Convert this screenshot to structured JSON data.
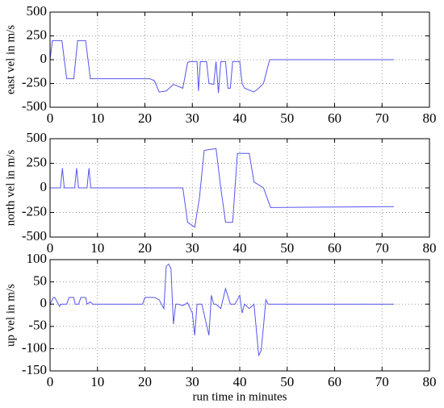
{
  "chart_data": [
    {
      "type": "line",
      "ylabel": "east vel in m/s",
      "color": "#5555ee",
      "x": [
        0,
        0.5,
        2.5,
        3.5,
        5,
        5.8,
        7.5,
        8.5,
        21,
        22,
        23,
        24.5,
        26,
        28,
        29,
        29.5,
        31,
        31.3,
        31.7,
        32,
        33,
        33.5,
        34.5,
        35,
        35.5,
        36,
        37,
        37.5,
        38,
        38.5,
        39,
        40,
        40.5,
        41,
        43,
        44,
        45,
        46.3,
        72.5
      ],
      "values": [
        0,
        200,
        200,
        -200,
        -200,
        200,
        200,
        -200,
        -200,
        -220,
        -340,
        -330,
        -260,
        -300,
        -30,
        -20,
        -20,
        -330,
        -20,
        -20,
        -20,
        -250,
        -260,
        -20,
        -350,
        -20,
        -20,
        -300,
        -300,
        -20,
        -20,
        -20,
        -250,
        -300,
        -340,
        -300,
        -250,
        0,
        0
      ],
      "xlim": [
        0,
        80
      ],
      "xticks": [
        0,
        10,
        20,
        30,
        40,
        50,
        60,
        70,
        80
      ],
      "ylim": [
        -500,
        500
      ],
      "yticks": [
        500,
        250,
        0,
        -250,
        -500
      ],
      "grid": true
    },
    {
      "type": "line",
      "ylabel": "north vel in m/s",
      "color": "#5555ee",
      "x": [
        0,
        2.2,
        2.6,
        3,
        5.2,
        5.6,
        6,
        7.8,
        8.2,
        8.6,
        28,
        29,
        30.5,
        31.5,
        32.5,
        35,
        36,
        37,
        38.5,
        39.5,
        42,
        43,
        45,
        46.5,
        72.5
      ],
      "values": [
        0,
        0,
        200,
        0,
        0,
        200,
        0,
        0,
        200,
        0,
        0,
        -350,
        -400,
        -100,
        380,
        400,
        0,
        -350,
        -350,
        350,
        350,
        60,
        0,
        -200,
        -190
      ],
      "xlim": [
        0,
        80
      ],
      "xticks": [
        0,
        10,
        20,
        30,
        40,
        50,
        60,
        70,
        80
      ],
      "ylim": [
        -500,
        500
      ],
      "yticks": [
        500,
        250,
        0,
        -250,
        -500
      ],
      "grid": true
    },
    {
      "type": "line",
      "ylabel": "up vel in m/s",
      "xlabel": "run time in minutes",
      "color": "#5555ee",
      "x": [
        0,
        0.7,
        1,
        2,
        2.3,
        3.5,
        4,
        5,
        5.3,
        6,
        6.5,
        7.5,
        7.8,
        8.5,
        9,
        19.5,
        20,
        22,
        23,
        24,
        24.5,
        25,
        25.5,
        26,
        26.5,
        27,
        28,
        29,
        30,
        30.5,
        31,
        32,
        33.5,
        34,
        34.5,
        35,
        36,
        37,
        38,
        39,
        40,
        40.5,
        41,
        42,
        43,
        44,
        44.5,
        45,
        45.5,
        46,
        48,
        72.5
      ],
      "values": [
        0,
        15,
        15,
        -5,
        0,
        0,
        15,
        15,
        0,
        0,
        15,
        15,
        0,
        5,
        0,
        0,
        15,
        15,
        10,
        -10,
        85,
        90,
        80,
        -45,
        0,
        0,
        -3,
        3,
        -20,
        -70,
        0,
        0,
        -70,
        20,
        0,
        0,
        -10,
        35,
        0,
        0,
        20,
        -20,
        0,
        -10,
        0,
        -115,
        -105,
        -50,
        10,
        0,
        0,
        0
      ],
      "xlim": [
        0,
        80
      ],
      "xticks": [
        0,
        10,
        20,
        30,
        40,
        50,
        60,
        70,
        80
      ],
      "ylim": [
        -150,
        100
      ],
      "yticks": [
        100,
        50,
        0,
        -50,
        -100,
        -150
      ],
      "grid": true
    }
  ]
}
